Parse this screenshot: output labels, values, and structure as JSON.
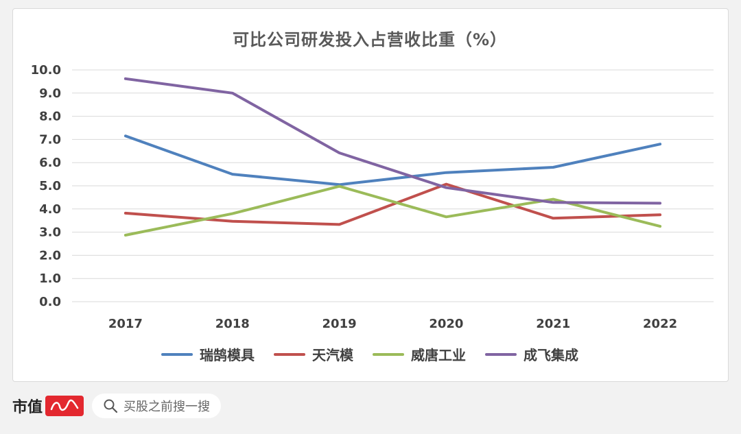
{
  "chart_data": {
    "type": "line",
    "title": "可比公司研发投入占营收比重（%）",
    "x": [
      "2017",
      "2018",
      "2019",
      "2020",
      "2021",
      "2022"
    ],
    "ylim": [
      0,
      10
    ],
    "yticks": [
      "0.0",
      "1.0",
      "2.0",
      "3.0",
      "4.0",
      "5.0",
      "6.0",
      "7.0",
      "8.0",
      "9.0",
      "10.0"
    ],
    "grid": true,
    "legend_position": "bottom",
    "series": [
      {
        "name": "瑞鹄模具",
        "color": "#4f81bd",
        "values": [
          7.15,
          5.5,
          5.05,
          5.57,
          5.8,
          6.8
        ]
      },
      {
        "name": "天汽模",
        "color": "#c0504d",
        "values": [
          3.82,
          3.47,
          3.33,
          5.07,
          3.6,
          3.75
        ]
      },
      {
        "name": "威唐工业",
        "color": "#9bbb59",
        "values": [
          2.87,
          3.8,
          4.98,
          3.66,
          4.42,
          3.25
        ]
      },
      {
        "name": "成飞集成",
        "color": "#8064a2",
        "values": [
          9.62,
          9.0,
          6.42,
          4.92,
          4.28,
          4.25
        ]
      }
    ]
  },
  "footer": {
    "brand": "市值",
    "search_placeholder": "买股之前搜一搜"
  }
}
